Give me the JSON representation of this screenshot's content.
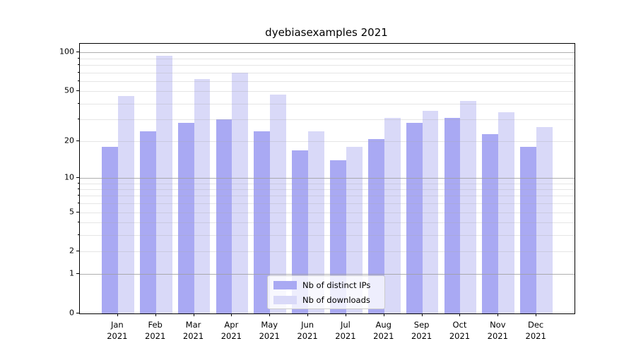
{
  "title": "dyebiasexamples 2021",
  "legend": {
    "items": [
      {
        "label": "Nb of distinct IPs",
        "color": "#a9a9f3"
      },
      {
        "label": "Nb of downloads",
        "color": "#d9d9f8"
      }
    ]
  },
  "chart_data": {
    "type": "bar",
    "title": "dyebiasexamples 2021",
    "categories": [
      "Jan 2021",
      "Feb 2021",
      "Mar 2021",
      "Apr 2021",
      "May 2021",
      "Jun 2021",
      "Jul 2021",
      "Aug 2021",
      "Sep 2021",
      "Oct 2021",
      "Nov 2021",
      "Dec 2021"
    ],
    "x_tick_line1": [
      "Jan",
      "Feb",
      "Mar",
      "Apr",
      "May",
      "Jun",
      "Jul",
      "Aug",
      "Sep",
      "Oct",
      "Nov",
      "Dec"
    ],
    "x_tick_line2": "2021",
    "series": [
      {
        "name": "Nb of distinct IPs",
        "color": "#a9a9f3",
        "values": [
          18,
          24,
          28,
          30,
          24,
          17,
          14,
          21,
          28,
          31,
          23,
          18
        ]
      },
      {
        "name": "Nb of downloads",
        "color": "#d9d9f8",
        "values": [
          46,
          95,
          62,
          70,
          47,
          24,
          18,
          31,
          35,
          42,
          34,
          26
        ]
      }
    ],
    "xlabel": "",
    "ylabel": "",
    "yscale": "log1p",
    "ylim": [
      0,
      117
    ],
    "y_ticks_labeled": [
      100,
      50,
      20,
      10,
      5,
      2,
      1,
      0
    ],
    "y_ticks_minor": [
      90,
      80,
      70,
      60,
      40,
      30,
      9,
      8,
      7,
      6,
      4,
      3
    ],
    "gridlines": {
      "major": [
        100,
        10,
        1
      ],
      "minor": [
        90,
        80,
        70,
        60,
        50,
        40,
        30,
        20,
        9,
        8,
        7,
        6,
        5,
        4,
        3,
        2
      ]
    },
    "grid": true,
    "legend_position": "lower center"
  }
}
